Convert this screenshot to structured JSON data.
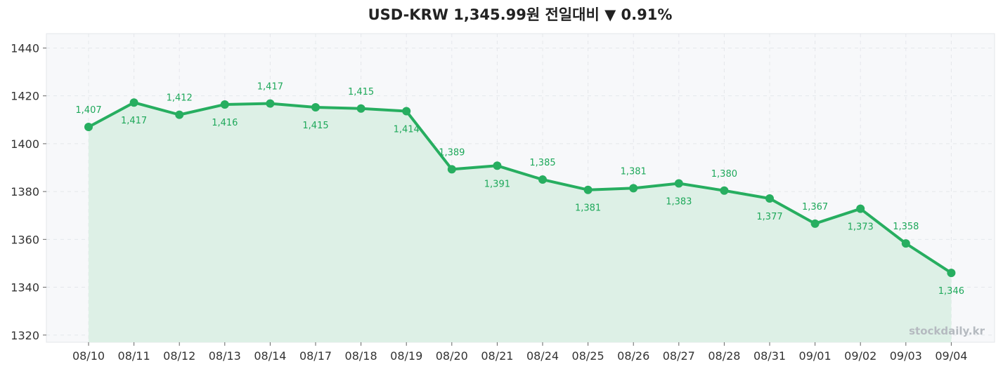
{
  "chart_data": {
    "type": "line",
    "title": "USD-KRW 1,345.99원 전일대비 ▼ 0.91%",
    "xlabel": "",
    "ylabel": "",
    "categories": [
      "08/10",
      "08/11",
      "08/12",
      "08/13",
      "08/14",
      "08/17",
      "08/18",
      "08/19",
      "08/20",
      "08/21",
      "08/24",
      "08/25",
      "08/26",
      "08/27",
      "08/28",
      "08/31",
      "09/01",
      "09/02",
      "09/03",
      "09/04"
    ],
    "series": [
      {
        "values": [
          1407.0,
          1417.2,
          1412.1,
          1416.4,
          1416.8,
          1415.2,
          1414.7,
          1413.6,
          1389.3,
          1390.8,
          1385.0,
          1380.7,
          1381.4,
          1383.4,
          1380.4,
          1377.1,
          1366.6,
          1372.8,
          1358.3,
          1345.99
        ],
        "labels": [
          "1,407",
          "1,417",
          "1,412",
          "1,416",
          "1,417",
          "1,415",
          "1,415",
          "1,414",
          "1,389",
          "1,391",
          "1,385",
          "1,381",
          "1,381",
          "1,383",
          "1,380",
          "1,377",
          "1,367",
          "1,373",
          "1,358",
          "1,346"
        ],
        "color": "#27ae60"
      }
    ],
    "yticks": [
      1320,
      1340,
      1360,
      1380,
      1400,
      1420,
      1440
    ],
    "ylim": [
      1317,
      1446
    ],
    "grid": true,
    "legend": "none",
    "fill_color": "#ddf0e6",
    "plot_bg": "#f7f8fa"
  },
  "watermark": "stockdaily.kr"
}
